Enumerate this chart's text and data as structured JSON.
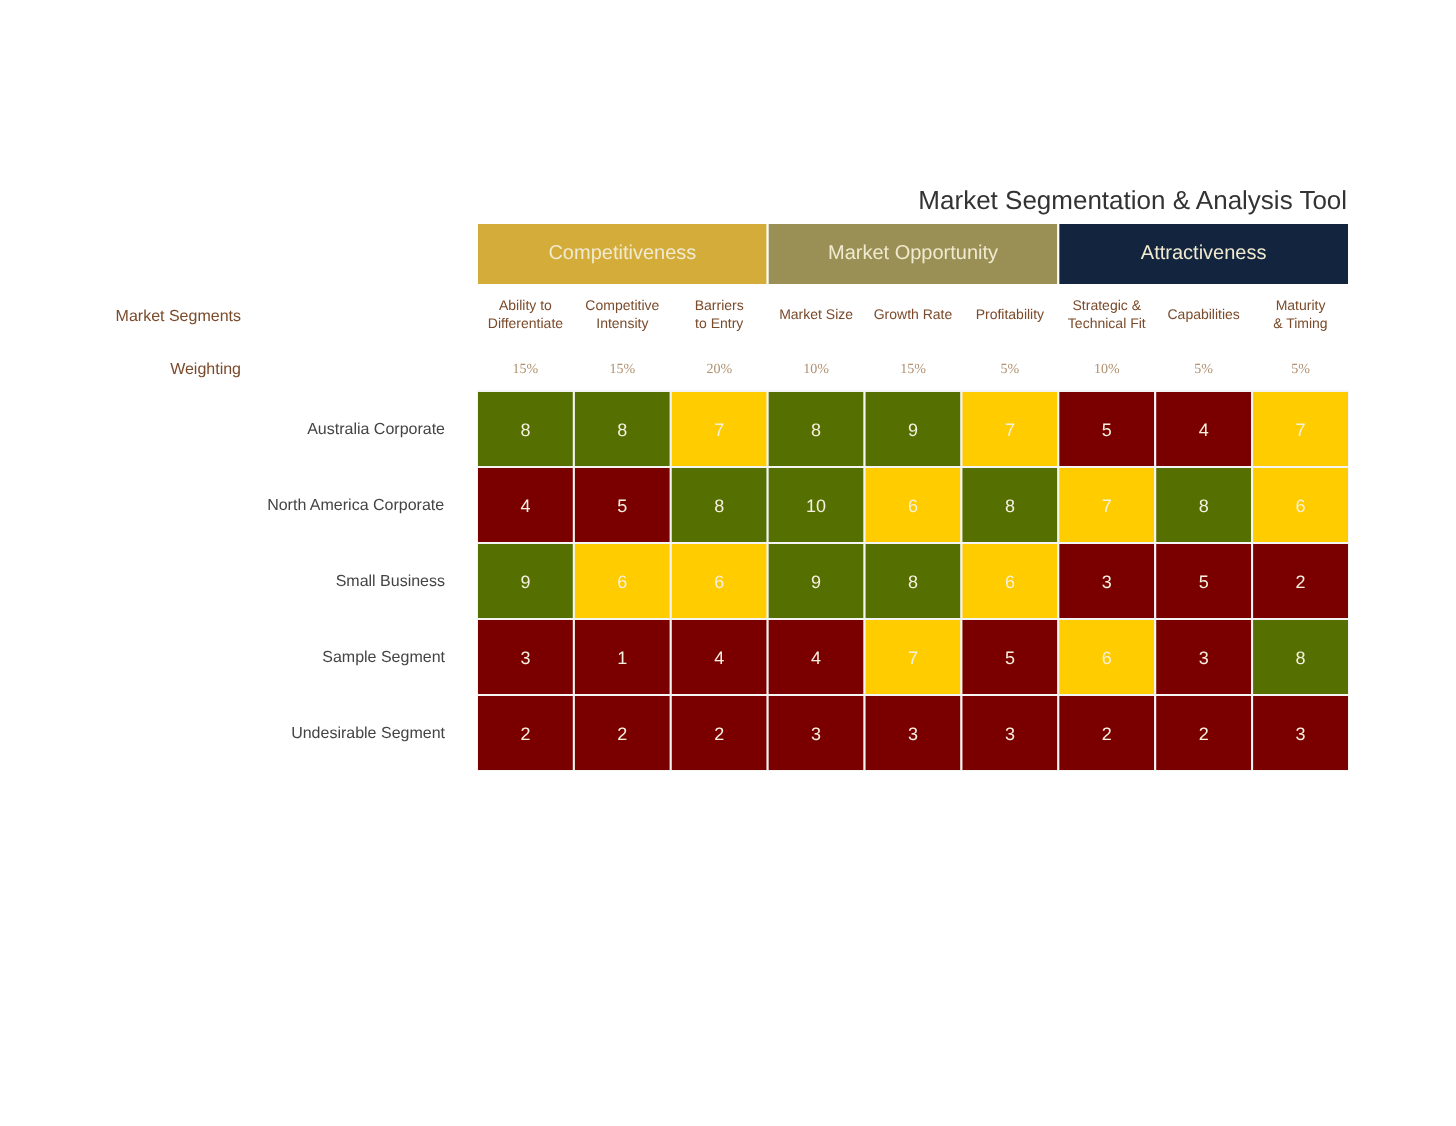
{
  "chart_data": {
    "type": "heatmap",
    "title": "Market Segmentation & Analysis Tool",
    "categories": [
      "Ability to Differentiate",
      "Competitive Intensity",
      "Barriers to Entry",
      "Market Size",
      "Growth Rate",
      "Profitability",
      "Strategic & Technical Fit",
      "Capabilities",
      "Maturity & Timing"
    ],
    "y_categories": [
      "Australia Corporate",
      "North America Corporate",
      "Small Business",
      "Sample Segment",
      "Undesirable Segment"
    ],
    "cells": [
      [
        8,
        8,
        7,
        8,
        9,
        7,
        5,
        4,
        7
      ],
      [
        4,
        5,
        8,
        10,
        6,
        8,
        7,
        8,
        6
      ],
      [
        9,
        6,
        6,
        9,
        8,
        6,
        3,
        5,
        2
      ],
      [
        3,
        1,
        4,
        4,
        7,
        5,
        6,
        3,
        8
      ],
      [
        2,
        2,
        2,
        3,
        3,
        3,
        2,
        2,
        3
      ]
    ],
    "data_labels": true,
    "colors": [
      "#7a0000",
      "#7a0000",
      "#7a0000",
      "#7a0000",
      "#7a0000",
      "#ffcc00",
      "#ffcc00",
      "#557000",
      "#557000",
      "#557000"
    ],
    "annotations": [
      "Competitiveness",
      "Market Opportunity",
      "Attractiveness",
      "Market Segments",
      "Weighting",
      "15%",
      "15%",
      "20%",
      "10%",
      "15%",
      "5%",
      "10%",
      "5%",
      "5%"
    ]
  }
}
